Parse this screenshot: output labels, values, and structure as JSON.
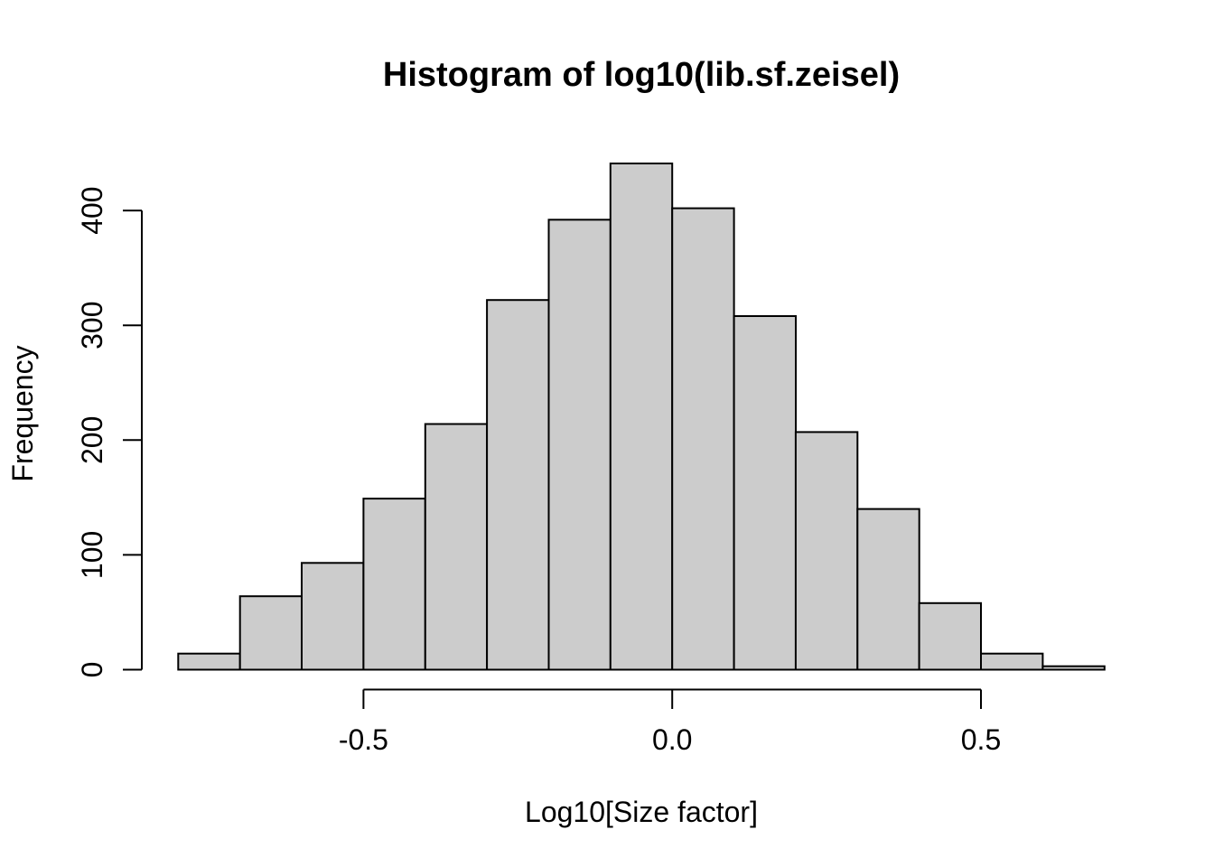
{
  "colors": {
    "background": "#FFFFFF",
    "bar_fill": "#CCCCCC",
    "bar_border": "#000000",
    "axis": "#000000",
    "text": "#000000"
  },
  "chart_data": {
    "type": "bar",
    "subtype": "histogram",
    "title": "Histogram of log10(lib.sf.zeisel)",
    "xlabel": "Log10[Size factor]",
    "ylabel": "Frequency",
    "breaks": [
      -0.8,
      -0.7,
      -0.6,
      -0.5,
      -0.4,
      -0.3,
      -0.2,
      -0.1,
      0.0,
      0.1,
      0.2,
      0.3,
      0.4,
      0.5,
      0.6,
      0.7
    ],
    "counts": [
      14,
      64,
      93,
      149,
      214,
      322,
      392,
      441,
      402,
      308,
      207,
      140,
      58,
      14,
      3
    ],
    "x_tick_values": [
      -0.5,
      0.0,
      0.5
    ],
    "x_tick_labels": [
      "-0.5",
      "0.0",
      "0.5"
    ],
    "y_tick_values": [
      0,
      100,
      200,
      300,
      400
    ],
    "y_tick_labels": [
      "0",
      "100",
      "200",
      "300",
      "400"
    ],
    "xlim": [
      -0.8,
      0.7
    ],
    "ylim": [
      0,
      441
    ],
    "grid": false,
    "legend": null
  }
}
